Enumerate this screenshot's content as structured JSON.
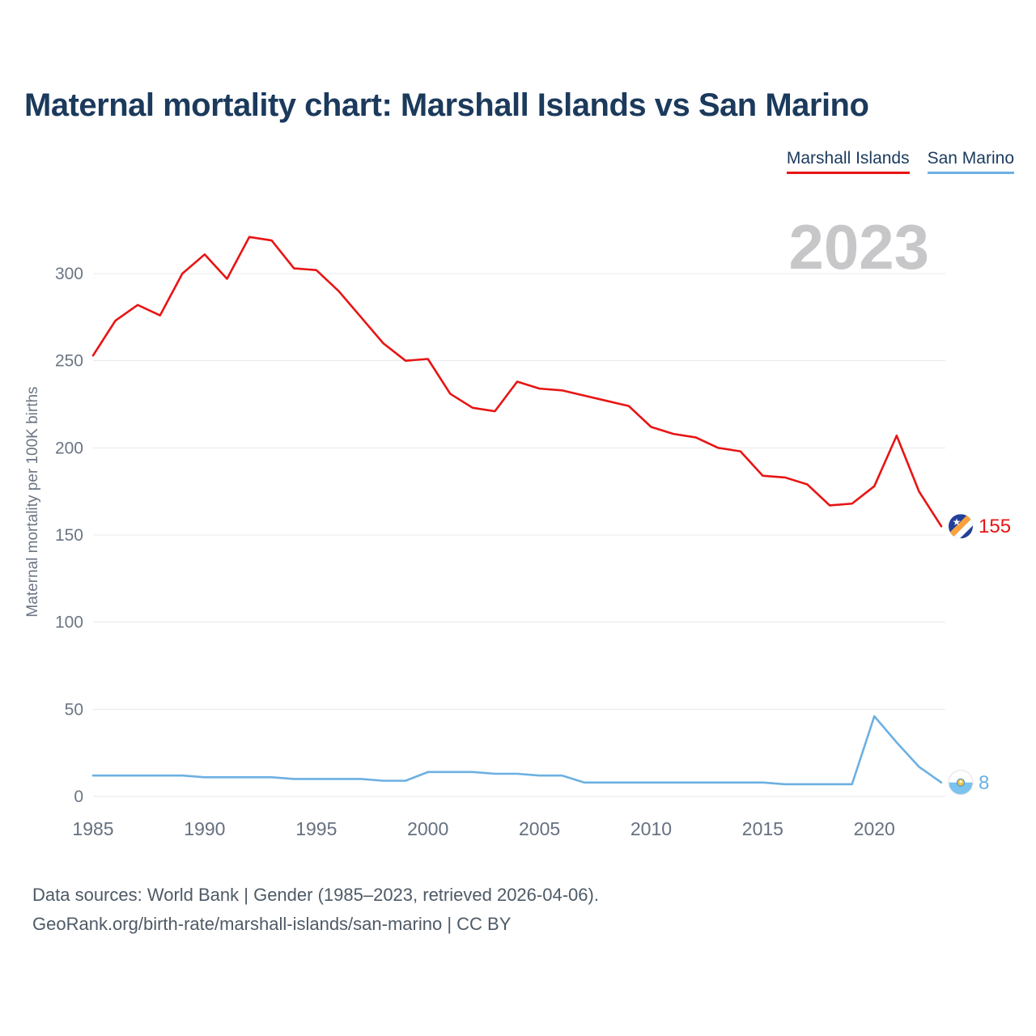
{
  "title": "Maternal mortality chart: Marshall Islands vs San Marino",
  "watermark": "2023",
  "legend": [
    {
      "label": "Marshall Islands",
      "color": "#e81414"
    },
    {
      "label": "San Marino",
      "color": "#6cb0e2"
    }
  ],
  "footer": {
    "line1": "Data sources: World Bank | Gender (1985–2023, retrieved 2026-04-06).",
    "line2": "GeoRank.org/birth-rate/marshall-islands/san-marino | CC BY"
  },
  "chart_data": {
    "type": "line",
    "title": "Maternal mortality chart: Marshall Islands vs San Marino",
    "xlabel": "",
    "ylabel": "Maternal mortality per 100K births",
    "ylim": [
      0,
      330
    ],
    "grid": "horizontal",
    "legend_position": "top-right",
    "yticks": [
      0,
      50,
      100,
      150,
      200,
      250,
      300
    ],
    "xticks": [
      1985,
      1990,
      1995,
      2000,
      2005,
      2010,
      2015,
      2020
    ],
    "x": [
      1985,
      1986,
      1987,
      1988,
      1989,
      1990,
      1991,
      1992,
      1993,
      1994,
      1995,
      1996,
      1997,
      1998,
      1999,
      2000,
      2001,
      2002,
      2003,
      2004,
      2005,
      2006,
      2007,
      2008,
      2009,
      2010,
      2011,
      2012,
      2013,
      2014,
      2015,
      2016,
      2017,
      2018,
      2019,
      2020,
      2021,
      2022,
      2023
    ],
    "series": [
      {
        "name": "Marshall Islands",
        "color": "#e81414",
        "end_label": "155",
        "flag": "marshall-islands",
        "values": [
          253,
          273,
          282,
          276,
          300,
          311,
          297,
          321,
          319,
          303,
          302,
          290,
          275,
          260,
          250,
          251,
          231,
          223,
          221,
          238,
          234,
          233,
          230,
          227,
          224,
          212,
          208,
          206,
          200,
          198,
          184,
          183,
          179,
          167,
          168,
          178,
          207,
          175,
          155
        ]
      },
      {
        "name": "San Marino",
        "color": "#6cb0e2",
        "end_label": "8",
        "flag": "san-marino",
        "values": [
          12,
          12,
          12,
          12,
          12,
          11,
          11,
          11,
          11,
          10,
          10,
          10,
          10,
          9,
          9,
          14,
          14,
          14,
          13,
          13,
          12,
          12,
          8,
          8,
          8,
          8,
          8,
          8,
          8,
          8,
          8,
          7,
          7,
          7,
          7,
          46,
          31,
          17,
          8
        ]
      }
    ]
  }
}
